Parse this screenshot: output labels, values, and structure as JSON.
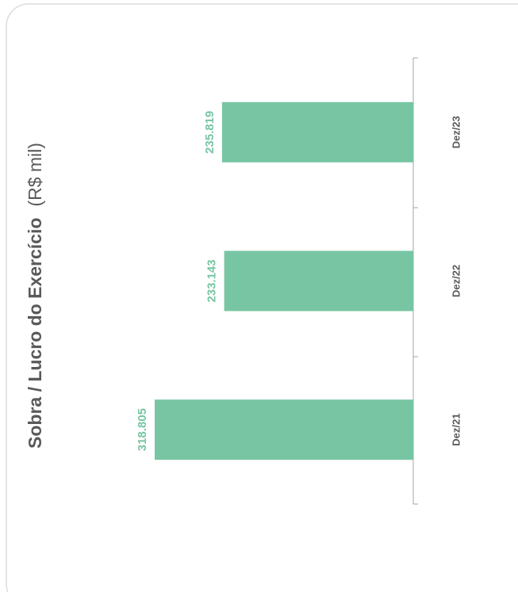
{
  "chart_data": {
    "type": "bar",
    "title": "Sobra / Lucro do Exercício",
    "subtitle": "(R$ mil)",
    "categories": [
      "Dez/21",
      "Dez/22",
      "Dez/23"
    ],
    "values": [
      318805,
      233143,
      235819
    ],
    "value_labels": [
      "318.805",
      "233.143",
      "235.819"
    ],
    "color": "#77c5a3",
    "label_color": "#77c5a3"
  }
}
